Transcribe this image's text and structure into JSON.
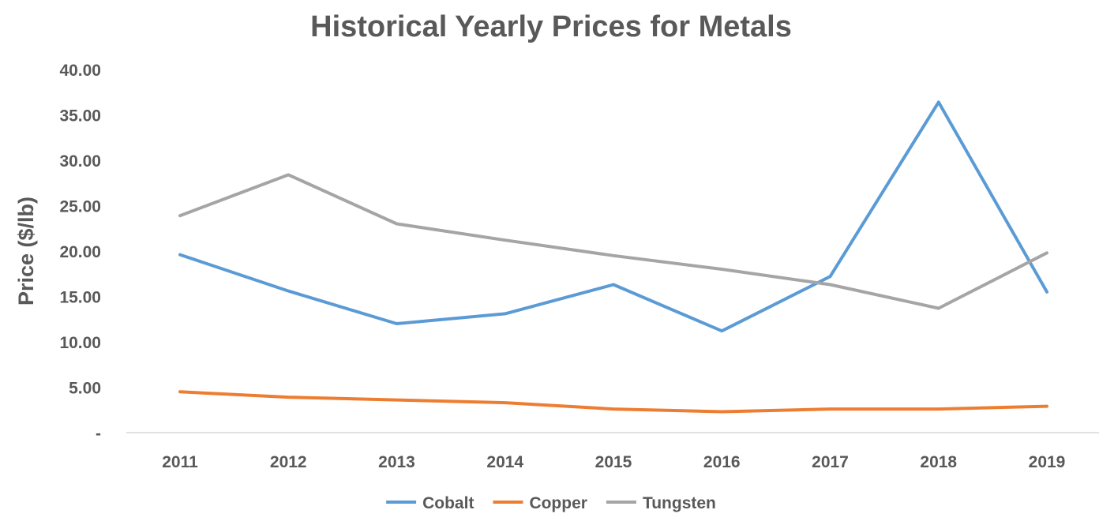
{
  "chart_data": {
    "type": "line",
    "title": "Historical Yearly Prices for Metals",
    "xlabel": "",
    "ylabel": "Price ($/lb)",
    "categories": [
      "2011",
      "2012",
      "2013",
      "2014",
      "2015",
      "2016",
      "2017",
      "2018",
      "2019"
    ],
    "ylim": [
      0,
      40
    ],
    "yticks": [
      0,
      5,
      10,
      15,
      20,
      25,
      30,
      35,
      40
    ],
    "ytick_labels": [
      "-",
      "5.00",
      "10.00",
      "15.00",
      "20.00",
      "25.00",
      "30.00",
      "35.00",
      "40.00"
    ],
    "grid": false,
    "legend_position": "bottom",
    "series": [
      {
        "name": "Cobalt",
        "color": "#5B9BD5",
        "values": [
          19.6,
          15.6,
          12.0,
          13.1,
          16.3,
          11.2,
          17.2,
          36.4,
          15.5
        ]
      },
      {
        "name": "Copper",
        "color": "#ED7D31",
        "values": [
          4.5,
          3.9,
          3.6,
          3.3,
          2.6,
          2.3,
          2.6,
          2.6,
          2.9
        ]
      },
      {
        "name": "Tungsten",
        "color": "#A5A5A5",
        "values": [
          23.9,
          28.4,
          23.0,
          21.2,
          19.5,
          18.0,
          16.3,
          13.7,
          19.8
        ]
      }
    ]
  }
}
